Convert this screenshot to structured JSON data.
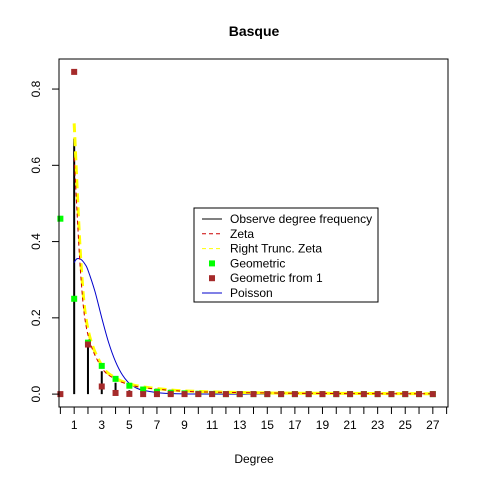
{
  "chart_data": {
    "type": "scatter",
    "title": "Basque",
    "xlabel": "Degree",
    "ylabel": "",
    "xlim": [
      -0.1,
      28.1
    ],
    "ylim": [
      -0.0338,
      0.8788
    ],
    "x_ticks": [
      1,
      3,
      5,
      7,
      9,
      11,
      13,
      15,
      17,
      19,
      21,
      23,
      25,
      27
    ],
    "x_minor_ticks": [
      0,
      2,
      4,
      6,
      8,
      10,
      12,
      14,
      16,
      18,
      20,
      22,
      24,
      26,
      28
    ],
    "y_ticks": [
      0.0,
      0.2,
      0.4,
      0.6,
      0.8
    ],
    "y_tick_labels": [
      "0.0",
      "0.2",
      "0.4",
      "0.6",
      "0.8"
    ],
    "legend_position": "center-right",
    "series": [
      {
        "name": "Observe degree frequency",
        "kind": "histogram-lines",
        "color": "#000000",
        "x": [
          1,
          2,
          3,
          4,
          5
        ],
        "y": [
          0.67,
          0.14,
          0.06,
          0.03,
          0.01
        ]
      },
      {
        "name": "Zeta",
        "kind": "dashed-line",
        "color": "#cc0000",
        "x": [
          1,
          1.5,
          2,
          3,
          4,
          5,
          6,
          8,
          10,
          15,
          20,
          27
        ],
        "y": [
          0.62,
          0.3,
          0.155,
          0.069,
          0.039,
          0.025,
          0.017,
          0.01,
          0.006,
          0.003,
          0.0015,
          0.0008
        ]
      },
      {
        "name": "Right Trunc. Zeta",
        "kind": "thick-dashed-line",
        "color": "#ffff00",
        "x": [
          1,
          1.5,
          2,
          3,
          4,
          5,
          6,
          8,
          10,
          15,
          20,
          27
        ],
        "y": [
          0.71,
          0.34,
          0.17,
          0.075,
          0.042,
          0.027,
          0.019,
          0.011,
          0.007,
          0.003,
          0.002,
          0.001
        ]
      },
      {
        "name": "Geometric",
        "kind": "points",
        "color": "#00ff00",
        "x": [
          0,
          1,
          2,
          3,
          4,
          5,
          6,
          7,
          8,
          9,
          10,
          11,
          12,
          13,
          14,
          15,
          16,
          17,
          18,
          19,
          20,
          21,
          22,
          23,
          24,
          25,
          26,
          27
        ],
        "y": [
          0.46,
          0.25,
          0.135,
          0.074,
          0.04,
          0.022,
          0.012,
          0.006,
          0.0035,
          0.002,
          0.001,
          0.0005,
          0,
          0,
          0,
          0,
          0,
          0,
          0,
          0,
          0,
          0,
          0,
          0,
          0,
          0,
          0,
          0
        ]
      },
      {
        "name": "Geometric from 1",
        "kind": "points",
        "color": "#a52a2a",
        "x": [
          0,
          1,
          2,
          3,
          4,
          5,
          6,
          7,
          8,
          9,
          10,
          11,
          12,
          13,
          14,
          15,
          16,
          17,
          18,
          19,
          20,
          21,
          22,
          23,
          24,
          25,
          26,
          27
        ],
        "y": [
          0,
          0.845,
          0.13,
          0.02,
          0.003,
          0.0005,
          0,
          0,
          0,
          0,
          0,
          0,
          0,
          0,
          0,
          0,
          0,
          0,
          0,
          0,
          0,
          0,
          0,
          0,
          0,
          0,
          0,
          0
        ]
      },
      {
        "name": "Poisson",
        "kind": "line",
        "color": "#0000cc",
        "x": [
          1,
          1.2,
          1.5,
          1.8,
          2,
          2.5,
          3,
          3.5,
          4,
          4.5,
          5,
          5.5,
          6,
          7,
          8,
          9,
          10,
          12,
          15
        ],
        "y": [
          0.345,
          0.355,
          0.353,
          0.34,
          0.325,
          0.27,
          0.2,
          0.135,
          0.085,
          0.05,
          0.028,
          0.016,
          0.01,
          0.004,
          0.0015,
          0.0005,
          0.0002,
          0,
          0
        ]
      }
    ]
  }
}
